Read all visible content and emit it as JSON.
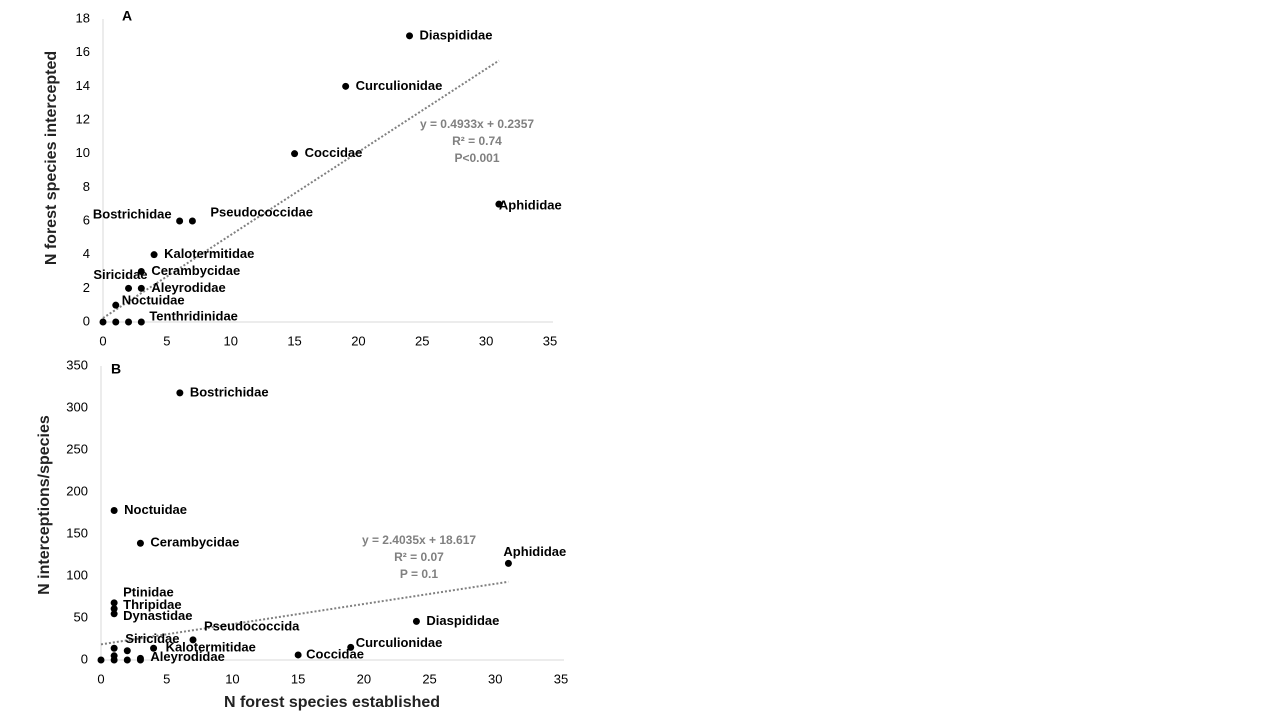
{
  "chart_data": [
    {
      "type": "scatter",
      "panel_label": "A",
      "y_label": "N forest species intercepted",
      "color": "#000000",
      "x": [
        24,
        19,
        15,
        31,
        6,
        7,
        4,
        3,
        2,
        3,
        1,
        3,
        0,
        1,
        2
      ],
      "values": [
        17,
        14,
        10,
        7,
        6,
        6,
        4,
        3,
        2,
        2,
        1,
        0,
        0,
        0,
        0
      ],
      "labels": [
        "Diaspididae",
        "Curculionidae",
        "Coccidae",
        "Aphididae",
        "Bostrichidae",
        "Pseudococcidae",
        "Kalotermitidae",
        "Cerambycidae",
        "Siricidae",
        "Aleyrodidae",
        "Noctuidae",
        "Tenthridinidae",
        null,
        null,
        null
      ],
      "xlim": [
        0,
        35
      ],
      "ylim": [
        0,
        18
      ],
      "xticks": [
        0,
        5,
        10,
        15,
        20,
        25,
        30,
        35
      ],
      "yticks": [
        0,
        2,
        4,
        6,
        8,
        10,
        12,
        14,
        16,
        18
      ],
      "trendline": {
        "slope": 0.4933,
        "intercept": 0.2357,
        "color": "#808080",
        "equation": "y = 0.4933x + 0.2357",
        "r2": "R² = 0.74",
        "p": "P<0.001"
      }
    },
    {
      "type": "scatter",
      "panel_label": "B",
      "y_label": "N interceptions/species",
      "x_label": "N forest species established",
      "color": "#000000",
      "x": [
        6,
        1,
        3,
        31,
        1,
        1,
        1,
        24,
        7,
        19,
        15,
        2,
        4,
        3,
        0,
        1,
        1,
        1,
        2,
        3
      ],
      "values": [
        318,
        178,
        139,
        115,
        68,
        61,
        55,
        46,
        24,
        15,
        6,
        11,
        14,
        2,
        0,
        14,
        5,
        0,
        0,
        0
      ],
      "labels": [
        "Bostrichidae",
        "Noctuidae",
        "Cerambycidae",
        "Aphididae",
        "Ptinidae",
        "Thripidae",
        "Dynastidae",
        "Diaspididae",
        "Pseudococcida",
        "Curculionidae",
        "Coccidae",
        "Siricidae",
        "Kalotermitidae",
        "Aleyrodidae",
        null,
        null,
        null,
        null,
        null,
        null
      ],
      "xlim": [
        0,
        35
      ],
      "ylim": [
        0,
        350
      ],
      "xticks": [
        0,
        5,
        10,
        15,
        20,
        25,
        30,
        35
      ],
      "yticks": [
        0,
        50,
        100,
        150,
        200,
        250,
        300,
        350
      ],
      "trendline": {
        "slope": 2.4035,
        "intercept": 18.617,
        "color": "#808080",
        "equation": "y = 2.4035x + 18.617",
        "r2": "R² = 0.07",
        "p": "P = 0.1"
      }
    }
  ]
}
